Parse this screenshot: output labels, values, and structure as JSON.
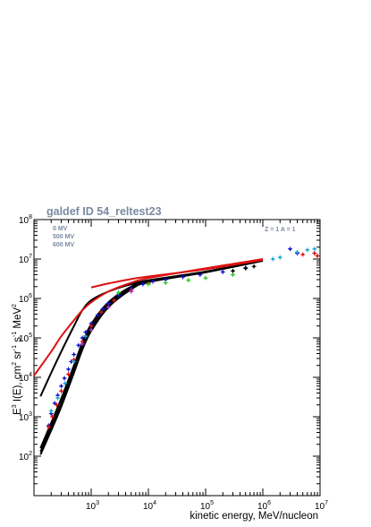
{
  "chart_data": {
    "type": "line",
    "title": "galdef ID 54_reltest23",
    "xlabel": "kinetic energy, MeV/nucleon",
    "ylabel_parts": {
      "base": "E",
      "p1": "3",
      "mid": " I(E), cm",
      "p2": "2",
      "mid2": " sr",
      "p3": "-1",
      "mid3": " s",
      "p4": "-1",
      "mid4": " MeV",
      "p5": "2"
    },
    "x_scale": "log",
    "y_scale": "log",
    "xlim": [
      100,
      10000000
    ],
    "ylim": [
      10,
      100000000
    ],
    "x_ticks": [
      {
        "base": "10",
        "exp": "3",
        "value": 1000
      },
      {
        "base": "10",
        "exp": "4",
        "value": 10000
      },
      {
        "base": "10",
        "exp": "5",
        "value": 100000
      },
      {
        "base": "10",
        "exp": "6",
        "value": 1000000
      },
      {
        "base": "10",
        "exp": "7",
        "value": 10000000
      }
    ],
    "y_ticks": [
      {
        "base": "10",
        "exp": "2",
        "value": 100
      },
      {
        "base": "10",
        "exp": "3",
        "value": 1000
      },
      {
        "base": "10",
        "exp": "4",
        "value": 10000
      },
      {
        "base": "10",
        "exp": "5",
        "value": 100000
      },
      {
        "base": "10",
        "exp": "6",
        "value": 1000000
      },
      {
        "base": "10",
        "exp": "7",
        "value": 10000000
      },
      {
        "base": "10",
        "exp": "8",
        "value": 100000000
      }
    ],
    "legend_position": "top-left",
    "legend": [
      "0 MV",
      "500 MV",
      "600 MV"
    ],
    "annotation": "Z = 1  A = 1",
    "series": [
      {
        "color": "#000000",
        "points": [
          [
            130,
            3300
          ],
          [
            200,
            13000
          ],
          [
            300,
            45000
          ],
          [
            500,
            200000
          ],
          [
            700,
            500000
          ],
          [
            1000,
            900000
          ],
          [
            2000,
            1500000
          ],
          [
            5000,
            2300000
          ],
          [
            10000,
            2900000
          ],
          [
            100000,
            4800000
          ],
          [
            1000000,
            9500000
          ]
        ]
      },
      {
        "color": "#000000",
        "points": [
          [
            130,
            110
          ],
          [
            200,
            450
          ],
          [
            300,
            1800
          ],
          [
            500,
            13000
          ],
          [
            700,
            50000
          ],
          [
            1000,
            150000
          ],
          [
            2000,
            600000
          ],
          [
            5000,
            1700000
          ],
          [
            10000,
            2600000
          ],
          [
            100000,
            4600000
          ],
          [
            1000000,
            9000000
          ]
        ]
      },
      {
        "color": "#000000",
        "points": [
          [
            130,
            130
          ],
          [
            200,
            550
          ],
          [
            300,
            2200
          ],
          [
            500,
            16000
          ],
          [
            700,
            60000
          ],
          [
            1000,
            180000
          ],
          [
            2000,
            700000
          ],
          [
            5000,
            1850000
          ],
          [
            10000,
            2700000
          ],
          [
            100000,
            4700000
          ],
          [
            1000000,
            9100000
          ]
        ]
      },
      {
        "color": "#000000",
        "points": [
          [
            130,
            160
          ],
          [
            200,
            700
          ],
          [
            300,
            2900
          ],
          [
            500,
            20000
          ],
          [
            700,
            75000
          ],
          [
            1000,
            220000
          ],
          [
            2000,
            800000
          ],
          [
            5000,
            2000000
          ],
          [
            10000,
            2800000
          ],
          [
            100000,
            4750000
          ],
          [
            1000000,
            9200000
          ]
        ]
      },
      {
        "color": "#dd1111",
        "points": [
          [
            100,
            11000
          ],
          [
            200,
            45000
          ],
          [
            300,
            110000
          ],
          [
            500,
            280000
          ],
          [
            700,
            500000
          ],
          [
            1000,
            800000
          ],
          [
            2000,
            1500000
          ],
          [
            5000,
            2500000
          ],
          [
            10000,
            3300000
          ],
          [
            100000,
            5800000
          ],
          [
            1000000,
            10000000
          ]
        ]
      },
      {
        "color": "#dd1111",
        "points": [
          [
            1000,
            1900000
          ],
          [
            2000,
            2400000
          ],
          [
            5000,
            3100000
          ],
          [
            10000,
            3600000
          ],
          [
            100000,
            5500000
          ],
          [
            1000000,
            9500000
          ]
        ]
      }
    ],
    "data_points": [
      {
        "color": "#1111cc",
        "points": [
          [
            180,
            600
          ],
          [
            200,
            1200
          ],
          [
            230,
            2200
          ],
          [
            260,
            3500
          ],
          [
            300,
            6000
          ],
          [
            340,
            9500
          ],
          [
            400,
            16000
          ],
          [
            450,
            25000
          ],
          [
            500,
            38000
          ],
          [
            600,
            65000
          ],
          [
            700,
            100000
          ],
          [
            800,
            140000
          ],
          [
            1000,
            230000
          ],
          [
            1300,
            380000
          ],
          [
            1600,
            550000
          ],
          [
            2000,
            750000
          ],
          [
            3000,
            1200000
          ],
          [
            5000,
            1800000
          ],
          [
            8000,
            2300000
          ],
          [
            12000,
            2700000
          ],
          [
            20000,
            3000000
          ],
          [
            40000,
            3500000
          ],
          [
            80000,
            4000000
          ],
          [
            200000,
            4700000
          ],
          [
            500000,
            6000000
          ],
          [
            3000000,
            18000000
          ],
          [
            4000000,
            14000000
          ]
        ]
      },
      {
        "color": "#dd1111",
        "points": [
          [
            180,
            550
          ],
          [
            210,
            1000
          ],
          [
            250,
            2000
          ],
          [
            300,
            4500
          ],
          [
            400,
            12000
          ],
          [
            500,
            28000
          ],
          [
            700,
            80000
          ],
          [
            1000,
            200000
          ],
          [
            1500,
            450000
          ],
          [
            2500,
            900000
          ],
          [
            5000,
            1600000
          ],
          [
            10000,
            2400000
          ],
          [
            5000000,
            13000000
          ],
          [
            8000000,
            14000000
          ],
          [
            9000000,
            12000000
          ]
        ]
      },
      {
        "color": "#11aacc",
        "points": [
          [
            200,
            1400
          ],
          [
            260,
            3000
          ],
          [
            350,
            7000
          ],
          [
            500,
            25000
          ],
          [
            800,
            110000
          ],
          [
            1500000,
            10000000
          ],
          [
            2000000,
            11000000
          ],
          [
            4000000,
            15000000
          ],
          [
            6000000,
            17000000
          ],
          [
            8000000,
            18000000
          ]
        ]
      },
      {
        "color": "#22cc22",
        "points": [
          [
            3000,
            1400000
          ],
          [
            10000,
            2300000
          ],
          [
            20000,
            2500000
          ],
          [
            50000,
            2900000
          ],
          [
            100000,
            3300000
          ],
          [
            300000,
            4000000
          ]
        ]
      },
      {
        "color": "#aa33cc",
        "points": [
          [
            700,
            70000
          ],
          [
            1000,
            160000
          ],
          [
            2000,
            600000
          ],
          [
            5000,
            1500000
          ]
        ]
      },
      {
        "color": "#000000",
        "points": [
          [
            300000,
            5000000
          ],
          [
            500000,
            5800000
          ],
          [
            700000,
            6500000
          ]
        ]
      }
    ]
  }
}
